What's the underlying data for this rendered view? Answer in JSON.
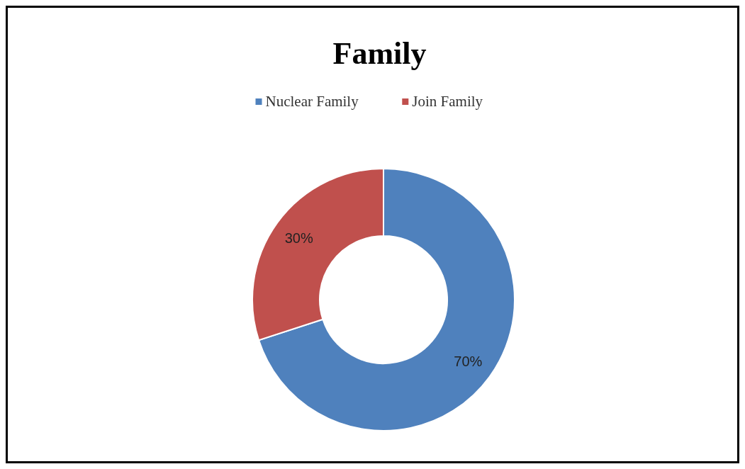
{
  "chart_data": {
    "type": "donut",
    "title": "Family",
    "categories": [
      "Nuclear Family",
      "Join Family"
    ],
    "values": [
      70,
      30
    ],
    "value_labels": [
      "70%",
      "30%"
    ],
    "colors": [
      "#4f81bd",
      "#c0504d"
    ],
    "legend": "top"
  }
}
